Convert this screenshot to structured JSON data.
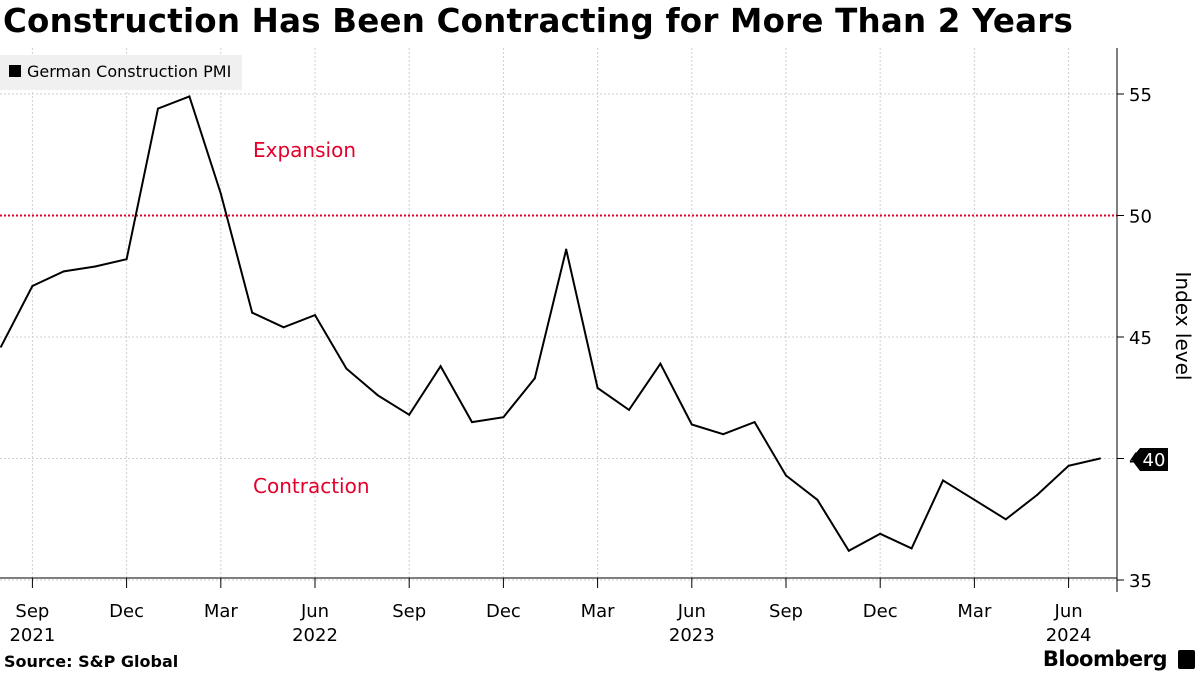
{
  "title": "Construction Has Been Contracting for More Than 2 Years",
  "source": "Source: S&P Global",
  "brand": "Bloomberg",
  "colors": {
    "line": "#000000",
    "threshold": "#e4002b",
    "grid": "#cfcfcf",
    "legend_bg": "#f0f0f0"
  },
  "chart_data": {
    "type": "line",
    "title": "Construction Has Been Contracting for More Than 2 Years",
    "ylabel": "Index level",
    "xlabel": "",
    "ylim": [
      35,
      57
    ],
    "y_ticks": [
      35,
      40,
      45,
      50,
      55
    ],
    "x_start": "2021-08",
    "x_ticks": [
      {
        "month": "2021-09",
        "label": "Sep",
        "year": "2021"
      },
      {
        "month": "2021-12",
        "label": "Dec",
        "year": ""
      },
      {
        "month": "2022-03",
        "label": "Mar",
        "year": ""
      },
      {
        "month": "2022-06",
        "label": "Jun",
        "year": "2022"
      },
      {
        "month": "2022-09",
        "label": "Sep",
        "year": ""
      },
      {
        "month": "2022-12",
        "label": "Dec",
        "year": ""
      },
      {
        "month": "2023-03",
        "label": "Mar",
        "year": ""
      },
      {
        "month": "2023-06",
        "label": "Jun",
        "year": "2023"
      },
      {
        "month": "2023-09",
        "label": "Sep",
        "year": ""
      },
      {
        "month": "2023-12",
        "label": "Dec",
        "year": ""
      },
      {
        "month": "2024-03",
        "label": "Mar",
        "year": ""
      },
      {
        "month": "2024-06",
        "label": "Jun",
        "year": "2024"
      }
    ],
    "series": [
      {
        "name": "German Construction PMI",
        "x": [
          "2021-08",
          "2021-09",
          "2021-10",
          "2021-11",
          "2021-12",
          "2022-01",
          "2022-02",
          "2022-03",
          "2022-04",
          "2022-05",
          "2022-06",
          "2022-07",
          "2022-08",
          "2022-09",
          "2022-10",
          "2022-11",
          "2022-12",
          "2023-01",
          "2023-02",
          "2023-03",
          "2023-04",
          "2023-05",
          "2023-06",
          "2023-07",
          "2023-08",
          "2023-09",
          "2023-10",
          "2023-11",
          "2023-12",
          "2024-01",
          "2024-02",
          "2024-03",
          "2024-04",
          "2024-05",
          "2024-06",
          "2024-07"
        ],
        "values": [
          44.6,
          47.1,
          47.7,
          47.9,
          48.2,
          54.4,
          54.9,
          50.9,
          46.0,
          45.4,
          45.9,
          43.7,
          42.6,
          41.8,
          43.8,
          41.5,
          41.7,
          43.3,
          48.6,
          42.9,
          42.0,
          43.9,
          41.4,
          41.0,
          41.5,
          39.3,
          38.3,
          36.2,
          36.9,
          36.3,
          39.1,
          38.3,
          37.5,
          38.5,
          39.7,
          40.0
        ]
      }
    ],
    "threshold": 50,
    "annotations": {
      "expansion": "Expansion",
      "contraction": "Contraction"
    },
    "last_value_label": "40",
    "legend_position": "top-left"
  }
}
